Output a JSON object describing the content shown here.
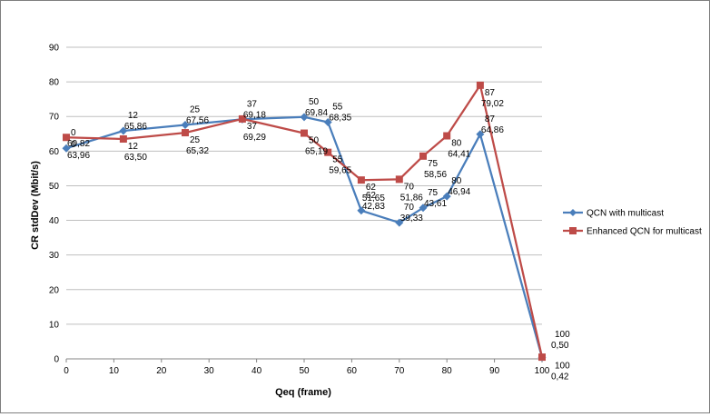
{
  "chart_data": {
    "type": "line",
    "title": "",
    "xlabel": "Qeq (frame)",
    "ylabel": "CR stdDev (Mbit/s)",
    "xlim": [
      0,
      100
    ],
    "ylim": [
      0,
      90
    ],
    "x_ticks": [
      0,
      10,
      20,
      30,
      40,
      50,
      60,
      70,
      80,
      90,
      100
    ],
    "y_ticks": [
      0,
      10,
      20,
      30,
      40,
      50,
      60,
      70,
      80,
      90
    ],
    "grid": "horizontal",
    "legend_position": "right",
    "series": [
      {
        "name": "QCN with multicast",
        "color": "#4a7ebb",
        "marker": "diamond",
        "points": [
          {
            "x": 0,
            "y": 60.82,
            "xlabel": "0",
            "ylabel": "60,82"
          },
          {
            "x": 12,
            "y": 65.86,
            "xlabel": "12",
            "ylabel": "65,86"
          },
          {
            "x": 25,
            "y": 67.56,
            "xlabel": "25",
            "ylabel": "67,56"
          },
          {
            "x": 37,
            "y": 69.18,
            "xlabel": "37",
            "ylabel": "69,18"
          },
          {
            "x": 50,
            "y": 69.84,
            "xlabel": "50",
            "ylabel": "69,84"
          },
          {
            "x": 55,
            "y": 68.35,
            "xlabel": "55",
            "ylabel": "68,35"
          },
          {
            "x": 62,
            "y": 42.83,
            "xlabel": "62",
            "ylabel": "42,83"
          },
          {
            "x": 70,
            "y": 39.33,
            "xlabel": "70",
            "ylabel": "39,33"
          },
          {
            "x": 75,
            "y": 43.61,
            "xlabel": "75",
            "ylabel": "43,61"
          },
          {
            "x": 80,
            "y": 46.94,
            "xlabel": "80",
            "ylabel": "46,94"
          },
          {
            "x": 87,
            "y": 64.86,
            "xlabel": "87",
            "ylabel": "64,86"
          },
          {
            "x": 100,
            "y": 0.42,
            "xlabel": "100",
            "ylabel": "0,42"
          }
        ]
      },
      {
        "name": "Enhanced QCN for multicast",
        "color": "#be4b48",
        "marker": "square",
        "points": [
          {
            "x": 0,
            "y": 63.96,
            "xlabel": "0",
            "ylabel": "63,96"
          },
          {
            "x": 12,
            "y": 63.5,
            "xlabel": "12",
            "ylabel": "63,50"
          },
          {
            "x": 25,
            "y": 65.32,
            "xlabel": "25",
            "ylabel": "65,32"
          },
          {
            "x": 37,
            "y": 69.29,
            "xlabel": "37",
            "ylabel": "69,29"
          },
          {
            "x": 50,
            "y": 65.19,
            "xlabel": "50",
            "ylabel": "65,19"
          },
          {
            "x": 55,
            "y": 59.65,
            "xlabel": "55",
            "ylabel": "59,65"
          },
          {
            "x": 62,
            "y": 51.65,
            "xlabel": "62",
            "ylabel": "51,65"
          },
          {
            "x": 70,
            "y": 51.86,
            "xlabel": "70",
            "ylabel": "51,86"
          },
          {
            "x": 75,
            "y": 58.56,
            "xlabel": "75",
            "ylabel": "58,56"
          },
          {
            "x": 80,
            "y": 64.41,
            "xlabel": "80",
            "ylabel": "64,41"
          },
          {
            "x": 87,
            "y": 79.02,
            "xlabel": "87",
            "ylabel": "79,02"
          },
          {
            "x": 100,
            "y": 0.5,
            "xlabel": "100",
            "ylabel": "0,50"
          }
        ]
      }
    ]
  }
}
